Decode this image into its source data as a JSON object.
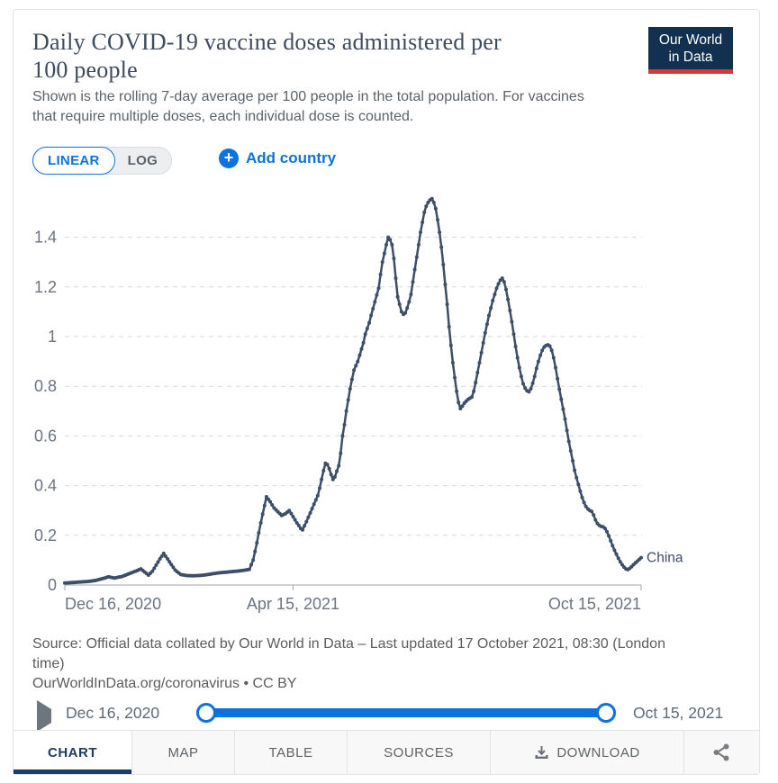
{
  "header": {
    "title": "Daily COVID-19 vaccine doses administered per 100 people",
    "title_lines": [
      "Daily COVID-19 vaccine doses administered per",
      "100 people"
    ],
    "subtitle_lines": [
      "Shown is the rolling 7-day average per 100 people in the total population. For vaccines",
      "that require multiple doses, each individual dose is counted."
    ],
    "logo": {
      "line1": "Our World",
      "line2": "in Data"
    }
  },
  "controls": {
    "linear_label": "LINEAR",
    "log_label": "LOG",
    "active_scale": "LINEAR",
    "add_country_label": "Add country"
  },
  "chart_data": {
    "type": "line",
    "title": "Daily COVID-19 vaccine doses administered per 100 people",
    "xlabel": "",
    "ylabel": "",
    "grid": true,
    "ylim": [
      0,
      1.6
    ],
    "y_ticks": [
      0,
      0.2,
      0.4,
      0.6,
      0.8,
      1,
      1.2,
      1.4
    ],
    "x_axis": {
      "start_day": 0,
      "end_day": 303,
      "tick_days": [
        0,
        120,
        303
      ],
      "tick_labels": [
        "Dec 16, 2020",
        "Apr 15, 2021",
        "Oct 15, 2021"
      ]
    },
    "series": [
      {
        "name": "China",
        "color": "#3d4e66",
        "points_day_value": [
          [
            0,
            0.008
          ],
          [
            4,
            0.01
          ],
          [
            8,
            0.012
          ],
          [
            12,
            0.014
          ],
          [
            16,
            0.018
          ],
          [
            20,
            0.026
          ],
          [
            23,
            0.033
          ],
          [
            26,
            0.028
          ],
          [
            30,
            0.034
          ],
          [
            34,
            0.046
          ],
          [
            38,
            0.058
          ],
          [
            40,
            0.065
          ],
          [
            42,
            0.052
          ],
          [
            44,
            0.04
          ],
          [
            46,
            0.055
          ],
          [
            48,
            0.08
          ],
          [
            50,
            0.105
          ],
          [
            52,
            0.127
          ],
          [
            54,
            0.105
          ],
          [
            56,
            0.082
          ],
          [
            58,
            0.06
          ],
          [
            61,
            0.042
          ],
          [
            64,
            0.038
          ],
          [
            68,
            0.037
          ],
          [
            72,
            0.039
          ],
          [
            76,
            0.043
          ],
          [
            80,
            0.048
          ],
          [
            84,
            0.051
          ],
          [
            88,
            0.054
          ],
          [
            92,
            0.057
          ],
          [
            95,
            0.06
          ],
          [
            97,
            0.063
          ],
          [
            99,
            0.1
          ],
          [
            101,
            0.17
          ],
          [
            103,
            0.25
          ],
          [
            105,
            0.32
          ],
          [
            106,
            0.355
          ],
          [
            108,
            0.335
          ],
          [
            110,
            0.31
          ],
          [
            112,
            0.295
          ],
          [
            114,
            0.28
          ],
          [
            116,
            0.287
          ],
          [
            118,
            0.3
          ],
          [
            120,
            0.275
          ],
          [
            122,
            0.25
          ],
          [
            124,
            0.228
          ],
          [
            125,
            0.222
          ],
          [
            127,
            0.255
          ],
          [
            129,
            0.29
          ],
          [
            131,
            0.325
          ],
          [
            133,
            0.36
          ],
          [
            134,
            0.39
          ],
          [
            135,
            0.425
          ],
          [
            136,
            0.46
          ],
          [
            137,
            0.49
          ],
          [
            138,
            0.485
          ],
          [
            139,
            0.468
          ],
          [
            140,
            0.445
          ],
          [
            141,
            0.425
          ],
          [
            142,
            0.435
          ],
          [
            143,
            0.458
          ],
          [
            144,
            0.48
          ],
          [
            145,
            0.53
          ],
          [
            146,
            0.6
          ],
          [
            147,
            0.645
          ],
          [
            148,
            0.7
          ],
          [
            149,
            0.745
          ],
          [
            150,
            0.79
          ],
          [
            152,
            0.865
          ],
          [
            154,
            0.9
          ],
          [
            155,
            0.925
          ],
          [
            157,
            0.975
          ],
          [
            158,
            1.01
          ],
          [
            160,
            1.055
          ],
          [
            161,
            1.085
          ],
          [
            163,
            1.14
          ],
          [
            165,
            1.195
          ],
          [
            166,
            1.25
          ],
          [
            167,
            1.3
          ],
          [
            168,
            1.335
          ],
          [
            169,
            1.37
          ],
          [
            170,
            1.4
          ],
          [
            171,
            1.39
          ],
          [
            172,
            1.37
          ],
          [
            173,
            1.315
          ],
          [
            174,
            1.235
          ],
          [
            175,
            1.16
          ],
          [
            176,
            1.13
          ],
          [
            177,
            1.1
          ],
          [
            178,
            1.09
          ],
          [
            179,
            1.095
          ],
          [
            180,
            1.115
          ],
          [
            181,
            1.14
          ],
          [
            182,
            1.17
          ],
          [
            183,
            1.22
          ],
          [
            184,
            1.27
          ],
          [
            185,
            1.32
          ],
          [
            186,
            1.37
          ],
          [
            187,
            1.42
          ],
          [
            188,
            1.46
          ],
          [
            189,
            1.5
          ],
          [
            190,
            1.525
          ],
          [
            191,
            1.54
          ],
          [
            192,
            1.55
          ],
          [
            193,
            1.555
          ],
          [
            194,
            1.54
          ],
          [
            195,
            1.515
          ],
          [
            196,
            1.47
          ],
          [
            197,
            1.42
          ],
          [
            198,
            1.36
          ],
          [
            199,
            1.29
          ],
          [
            200,
            1.21
          ],
          [
            201,
            1.13
          ],
          [
            202,
            1.04
          ],
          [
            203,
            0.965
          ],
          [
            204,
            0.895
          ],
          [
            205,
            0.835
          ],
          [
            206,
            0.78
          ],
          [
            207,
            0.735
          ],
          [
            208,
            0.71
          ],
          [
            209,
            0.72
          ],
          [
            210,
            0.732
          ],
          [
            211,
            0.74
          ],
          [
            212,
            0.747
          ],
          [
            213,
            0.752
          ],
          [
            214,
            0.757
          ],
          [
            215,
            0.78
          ],
          [
            216,
            0.815
          ],
          [
            217,
            0.855
          ],
          [
            218,
            0.895
          ],
          [
            219,
            0.935
          ],
          [
            220,
            0.975
          ],
          [
            221,
            1.015
          ],
          [
            222,
            1.05
          ],
          [
            223,
            1.085
          ],
          [
            224,
            1.115
          ],
          [
            225,
            1.145
          ],
          [
            226,
            1.17
          ],
          [
            227,
            1.195
          ],
          [
            228,
            1.213
          ],
          [
            229,
            1.227
          ],
          [
            230,
            1.235
          ],
          [
            231,
            1.22
          ],
          [
            232,
            1.19
          ],
          [
            233,
            1.15
          ],
          [
            234,
            1.105
          ],
          [
            235,
            1.06
          ],
          [
            236,
            1.01
          ],
          [
            237,
            0.96
          ],
          [
            238,
            0.915
          ],
          [
            239,
            0.875
          ],
          [
            240,
            0.84
          ],
          [
            241,
            0.81
          ],
          [
            242,
            0.792
          ],
          [
            243,
            0.782
          ],
          [
            244,
            0.778
          ],
          [
            245,
            0.79
          ],
          [
            246,
            0.812
          ],
          [
            247,
            0.84
          ],
          [
            248,
            0.872
          ],
          [
            249,
            0.9
          ],
          [
            250,
            0.925
          ],
          [
            251,
            0.945
          ],
          [
            252,
            0.958
          ],
          [
            253,
            0.964
          ],
          [
            254,
            0.967
          ],
          [
            255,
            0.962
          ],
          [
            256,
            0.945
          ],
          [
            257,
            0.915
          ],
          [
            258,
            0.875
          ],
          [
            259,
            0.83
          ],
          [
            260,
            0.788
          ],
          [
            261,
            0.748
          ],
          [
            262,
            0.708
          ],
          [
            263,
            0.668
          ],
          [
            264,
            0.622
          ],
          [
            265,
            0.578
          ],
          [
            266,
            0.54
          ],
          [
            267,
            0.5
          ],
          [
            268,
            0.462
          ],
          [
            269,
            0.432
          ],
          [
            270,
            0.405
          ],
          [
            271,
            0.378
          ],
          [
            272,
            0.352
          ],
          [
            273,
            0.332
          ],
          [
            274,
            0.316
          ],
          [
            275,
            0.306
          ],
          [
            276,
            0.3
          ],
          [
            277,
            0.296
          ],
          [
            278,
            0.282
          ],
          [
            279,
            0.262
          ],
          [
            280,
            0.248
          ],
          [
            281,
            0.24
          ],
          [
            282,
            0.236
          ],
          [
            283,
            0.234
          ],
          [
            284,
            0.228
          ],
          [
            285,
            0.215
          ],
          [
            286,
            0.198
          ],
          [
            287,
            0.178
          ],
          [
            288,
            0.158
          ],
          [
            289,
            0.14
          ],
          [
            290,
            0.124
          ],
          [
            291,
            0.108
          ],
          [
            292,
            0.094
          ],
          [
            293,
            0.082
          ],
          [
            294,
            0.072
          ],
          [
            295,
            0.065
          ],
          [
            296,
            0.062
          ],
          [
            297,
            0.067
          ],
          [
            298,
            0.074
          ],
          [
            299,
            0.082
          ],
          [
            300,
            0.089
          ],
          [
            301,
            0.096
          ],
          [
            302,
            0.103
          ],
          [
            303,
            0.11
          ]
        ]
      }
    ],
    "end_label": "China"
  },
  "footer": {
    "lines": [
      "Source: Official data collated by Our World in Data – Last updated 17 October 2021, 08:30 (London",
      "time)",
      "OurWorldInData.org/coronavirus • CC BY"
    ]
  },
  "timeline": {
    "start_label": "Dec 16, 2020",
    "end_label": "Oct 15, 2021"
  },
  "tabs": [
    {
      "label": "CHART",
      "active": true
    },
    {
      "label": "MAP",
      "active": false
    },
    {
      "label": "TABLE",
      "active": false
    },
    {
      "label": "SOURCES",
      "active": false
    },
    {
      "label": "DOWNLOAD",
      "active": false
    },
    {
      "label": "",
      "active": false
    }
  ],
  "colors": {
    "accent_blue": "#0b73dd",
    "series_line": "#3d4e66",
    "active_tab_navy": "#1d3d63",
    "logo_bg": "#12304f",
    "logo_bar_red": "#d8392e"
  }
}
